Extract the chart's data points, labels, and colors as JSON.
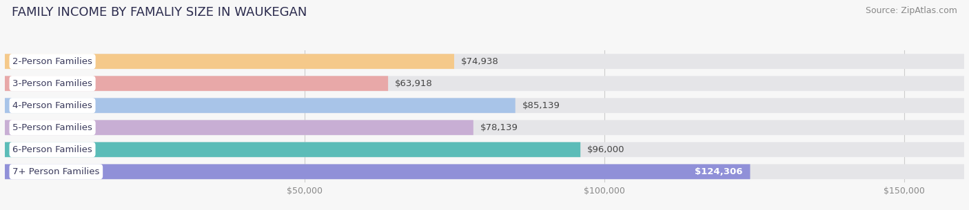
{
  "title": "FAMILY INCOME BY FAMALIY SIZE IN WAUKEGAN",
  "source": "Source: ZipAtlas.com",
  "categories": [
    "2-Person Families",
    "3-Person Families",
    "4-Person Families",
    "5-Person Families",
    "6-Person Families",
    "7+ Person Families"
  ],
  "values": [
    74938,
    63918,
    85139,
    78139,
    96000,
    124306
  ],
  "bar_colors": [
    "#f5c98a",
    "#e8a8a8",
    "#a8c4e8",
    "#c8aed4",
    "#5bbcb8",
    "#9090d8"
  ],
  "bar_bg_color": "#e5e5e8",
  "background_color": "#f7f7f7",
  "title_fontsize": 13,
  "source_fontsize": 9,
  "bar_label_fontsize": 9.5,
  "tick_fontsize": 9,
  "xlim_max": 160000,
  "x_ticks": [
    50000,
    100000,
    150000
  ],
  "x_tick_labels": [
    "$50,000",
    "$100,000",
    "$150,000"
  ]
}
